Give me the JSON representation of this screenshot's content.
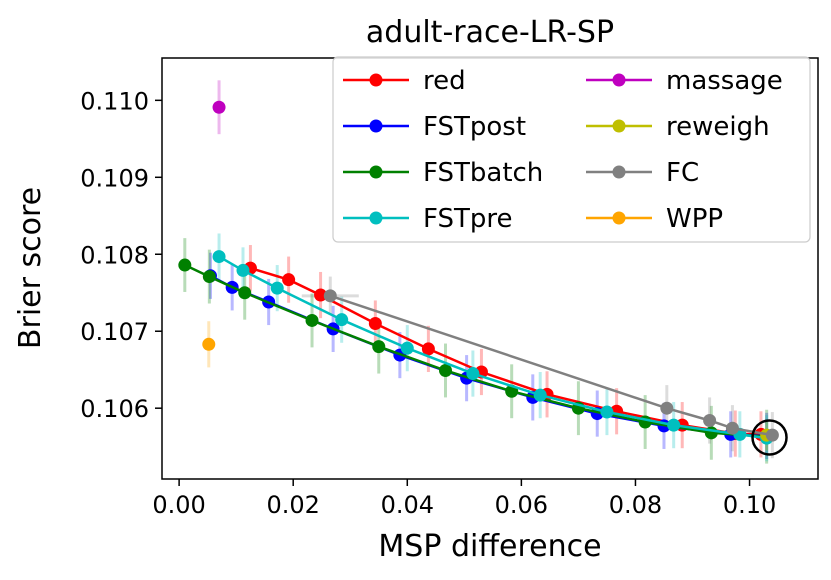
{
  "chart_data": {
    "type": "line",
    "title": "adult-race-LR-SP",
    "xlabel": "MSP difference",
    "ylabel": "Brier score",
    "xlim": [
      -0.003,
      0.112
    ],
    "ylim": [
      0.10508,
      0.11055
    ],
    "xticks": [
      "0.00",
      "0.02",
      "0.04",
      "0.06",
      "0.08",
      "0.10"
    ],
    "yticks": [
      "0.106",
      "0.107",
      "0.108",
      "0.109",
      "0.110"
    ],
    "grid": false,
    "legend_position": "top-right",
    "highlight": {
      "x": 0.1035,
      "y": 0.10562
    },
    "series": [
      {
        "name": "red",
        "color": "#ff0000",
        "x": [
          0.0125,
          0.0192,
          0.0248,
          0.0344,
          0.0437,
          0.053,
          0.0645,
          0.0767,
          0.0882,
          0.0975,
          0.102
        ],
        "y": [
          0.10782,
          0.10767,
          0.10747,
          0.1071,
          0.10677,
          0.10647,
          0.10618,
          0.10596,
          0.10578,
          0.10567,
          0.10566
        ],
        "err": [
          0.0003,
          0.0003,
          0.0003,
          0.0003,
          0.0003,
          0.0003,
          0.0003,
          0.0003,
          0.0003,
          0.0003,
          0.0003
        ]
      },
      {
        "name": "FSTpost",
        "color": "#0000ff",
        "x": [
          0.0055,
          0.0093,
          0.0157,
          0.027,
          0.0387,
          0.0504,
          0.062,
          0.0733,
          0.085,
          0.0967,
          0.103
        ],
        "y": [
          0.10772,
          0.10757,
          0.10738,
          0.10703,
          0.10669,
          0.10639,
          0.10614,
          0.10593,
          0.10577,
          0.10566,
          0.10564
        ],
        "err": [
          0.0003,
          0.0003,
          0.0003,
          0.0003,
          0.0003,
          0.0003,
          0.0003,
          0.0003,
          0.0003,
          0.0003,
          0.0003
        ]
      },
      {
        "name": "FSTbatch",
        "color": "#008000",
        "x": [
          0.001,
          0.0053,
          0.0115,
          0.0233,
          0.035,
          0.0467,
          0.0583,
          0.07,
          0.0817,
          0.0933,
          0.103
        ],
        "y": [
          0.10786,
          0.10771,
          0.1075,
          0.10714,
          0.1068,
          0.10649,
          0.10622,
          0.106,
          0.10582,
          0.10568,
          0.10563
        ],
        "err": [
          0.00035,
          0.00035,
          0.00035,
          0.00035,
          0.00035,
          0.00035,
          0.00035,
          0.00035,
          0.00035,
          0.00035,
          0.00035
        ]
      },
      {
        "name": "FSTpre",
        "color": "#00bfbf",
        "x": [
          0.007,
          0.0112,
          0.0172,
          0.0285,
          0.04,
          0.0515,
          0.0633,
          0.075,
          0.0867,
          0.0983,
          0.103
        ],
        "y": [
          0.10797,
          0.10779,
          0.10756,
          0.10715,
          0.10678,
          0.10645,
          0.10617,
          0.10595,
          0.10578,
          0.10566,
          0.10561
        ],
        "err": [
          0.0003,
          0.0003,
          0.0003,
          0.0003,
          0.0003,
          0.0003,
          0.0003,
          0.0003,
          0.0003,
          0.0003,
          0.0003
        ]
      },
      {
        "name": "massage",
        "color": "#bf00bf",
        "x": [
          0.007
        ],
        "y": [
          0.10991
        ],
        "err": [
          0.00035
        ]
      },
      {
        "name": "reweigh",
        "color": "#bfbf00",
        "x": [
          0.103
        ],
        "y": [
          0.10565
        ],
        "err": [
          0.0002
        ]
      },
      {
        "name": "FC",
        "color": "#808080",
        "x": [
          0.0265,
          0.0855,
          0.093,
          0.097,
          0.104
        ],
        "y": [
          0.10746,
          0.106,
          0.10584,
          0.10574,
          0.10565
        ],
        "err": [
          0.00025,
          0.0003,
          0.0003,
          0.0003,
          0.0003
        ],
        "xerr": [
          0.005,
          0,
          0,
          0,
          0
        ]
      },
      {
        "name": "WPP",
        "color": "#ffa500",
        "x": [
          0.0052
        ],
        "y": [
          0.10683
        ],
        "err": [
          0.0003
        ]
      }
    ]
  }
}
